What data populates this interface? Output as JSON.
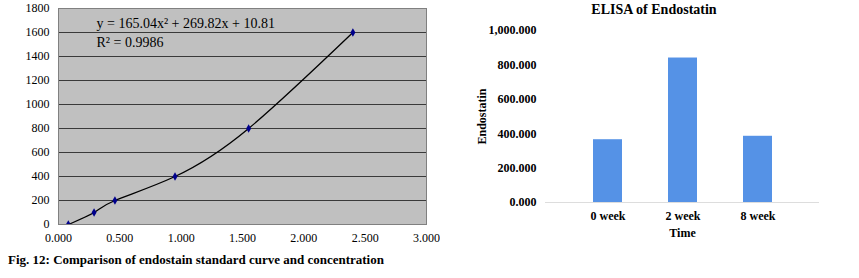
{
  "chart_data": [
    {
      "type": "scatter",
      "xlim": [
        0,
        3
      ],
      "xticks": [
        {
          "value": 0,
          "label": "0.000"
        },
        {
          "value": 0.5,
          "label": "0.500"
        },
        {
          "value": 1,
          "label": "1.000"
        },
        {
          "value": 1.5,
          "label": "1.500"
        },
        {
          "value": 2,
          "label": "2.000"
        },
        {
          "value": 2.5,
          "label": "2.500"
        },
        {
          "value": 3,
          "label": "3.000"
        }
      ],
      "ylim": [
        0,
        1800
      ],
      "yticks": [
        0,
        200,
        400,
        600,
        800,
        1000,
        1200,
        1400,
        1600,
        1800
      ],
      "grid": true,
      "annotations": [
        "y = 165.04x² + 269.82x + 10.81",
        "R² = 0.9986"
      ],
      "series": [
        {
          "type": "line",
          "color": "#000000",
          "line_style": "solid",
          "x": [
            0.08,
            0.29,
            0.46,
            0.95,
            1.55,
            2.4
          ],
          "values": [
            0,
            100,
            200,
            400,
            800,
            1600
          ]
        },
        {
          "type": "scatter",
          "color": "#00008b",
          "marker": "diamond",
          "x": [
            0.08,
            0.29,
            0.46,
            0.95,
            1.55,
            2.4
          ],
          "values": [
            0,
            100,
            200,
            400,
            800,
            1600
          ]
        }
      ]
    },
    {
      "type": "bar",
      "title": "ELISA of Endostatin",
      "x_label": "Time",
      "y_label": "Endostatin",
      "categories": [
        "0 week",
        "2 week",
        "8 week"
      ],
      "values": [
        365,
        840,
        385
      ],
      "color": "#5592e6",
      "ylim": [
        0,
        1000
      ],
      "yticks": [
        {
          "value": 0,
          "label": "0.000"
        },
        {
          "value": 200,
          "label": "200.000"
        },
        {
          "value": 400,
          "label": "400.000"
        },
        {
          "value": 600,
          "label": "600.000"
        },
        {
          "value": 800,
          "label": "800.000"
        },
        {
          "value": 1000,
          "label": "1,000.000"
        }
      ],
      "grid": false
    }
  ],
  "caption": "Fig. 12: Comparison of endostain standard curve and concentration"
}
